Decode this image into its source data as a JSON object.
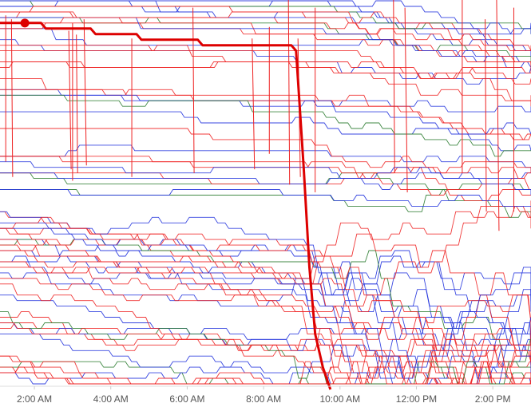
{
  "chart_data": {
    "type": "line",
    "title": "",
    "xlabel": "",
    "ylabel": "",
    "x_axis": {
      "ticks": [
        "2:00 AM",
        "4:00 AM",
        "6:00 AM",
        "8:00 AM",
        "10:00 AM",
        "12:00 PM",
        "2:00 PM"
      ],
      "tick_hours": [
        2,
        4,
        6,
        8,
        10,
        12,
        14
      ],
      "range_hours": [
        1.1,
        15.0
      ]
    },
    "grid": false,
    "legend": "none",
    "colors": {
      "red": "#ee2222",
      "blue": "#2233dd",
      "green": "#2e7d32",
      "highlight": "#dd0000",
      "axis_text": "#555555"
    },
    "series_groups": [
      {
        "color": "red",
        "count": 34
      },
      {
        "color": "blue",
        "count": 26
      },
      {
        "color": "green",
        "count": 8
      }
    ],
    "highlight": {
      "marker_hour": 1.75,
      "points": [
        [
          1.1,
          4
        ],
        [
          1.9,
          4
        ],
        [
          2.3,
          5
        ],
        [
          2.8,
          5
        ],
        [
          3.6,
          6
        ],
        [
          4.8,
          7
        ],
        [
          6.4,
          8
        ],
        [
          8.3,
          8
        ],
        [
          8.85,
          9
        ],
        [
          9.05,
          30
        ],
        [
          9.2,
          48
        ],
        [
          9.35,
          60
        ],
        [
          9.55,
          66
        ],
        [
          9.75,
          70
        ]
      ]
    }
  }
}
